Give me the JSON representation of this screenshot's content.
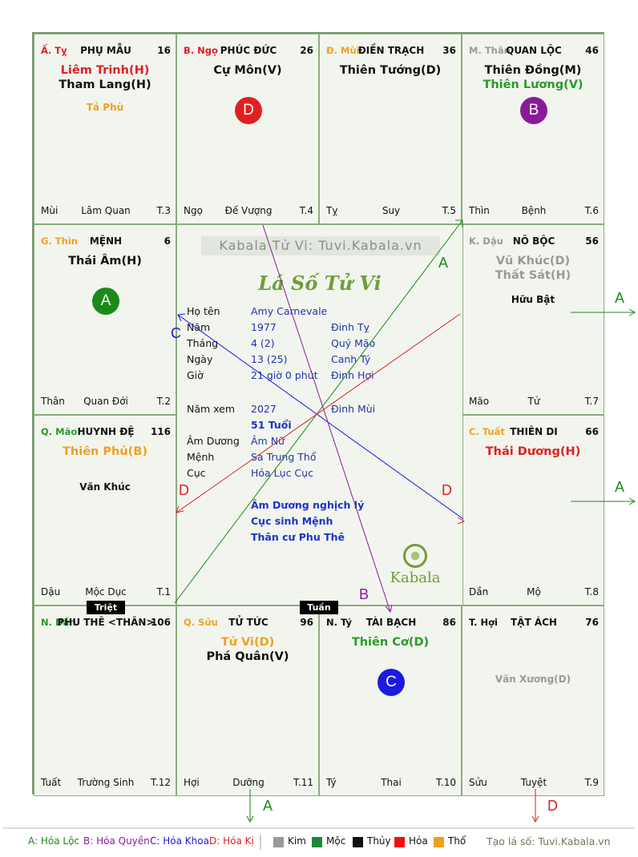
{
  "cells": {
    "ty": {
      "can": "Ấ. Tỵ",
      "can_color": "#e02020",
      "palace": "PHỤ MẪU",
      "num": "16",
      "main": [
        {
          "t": "Liêm Trinh(H)",
          "c": "#e02020"
        },
        {
          "t": "Tham Lang(H)",
          "c": "#111111"
        }
      ],
      "minor": [
        {
          "t": "Tả Phù",
          "c": "#f0a020"
        }
      ],
      "bot_l": "Mùi",
      "bot_c": "Lâm Quan",
      "bot_r": "T.3"
    },
    "ngo": {
      "can": "B. Ngọ",
      "can_color": "#e02020",
      "palace": "PHÚC ĐỨC",
      "num": "26",
      "main": [
        {
          "t": "Cự Môn(V)",
          "c": "#111111"
        }
      ],
      "minor": [],
      "badge": {
        "t": "D",
        "c": "#e02020"
      },
      "bot_l": "Ngọ",
      "bot_c": "Đế Vượng",
      "bot_r": "T.4"
    },
    "mui": {
      "can": "Đ. Mùi",
      "can_color": "#f0a020",
      "palace": "ĐIỀN TRẠCH",
      "num": "36",
      "main": [
        {
          "t": "Thiên Tướng(D)",
          "c": "#111111"
        }
      ],
      "minor": [],
      "bot_l": "Tỵ",
      "bot_c": "Suy",
      "bot_r": "T.5"
    },
    "than": {
      "can": "M. Thân",
      "can_color": "#999999",
      "palace": "QUAN LỘC",
      "num": "46",
      "main": [
        {
          "t": "Thiên Đồng(M)",
          "c": "#111111"
        },
        {
          "t": "Thiên Lương(V)",
          "c": "#2a9a2a"
        }
      ],
      "minor": [],
      "badge": {
        "t": "B",
        "c": "#8a1a9a"
      },
      "bot_l": "Thìn",
      "bot_c": "Bệnh",
      "bot_r": "T.6"
    },
    "thin": {
      "can": "G. Thìn",
      "can_color": "#f0a020",
      "palace": "MỆNH",
      "num": "6",
      "main": [
        {
          "t": "Thái Âm(H)",
          "c": "#111111"
        }
      ],
      "minor": [],
      "badge": {
        "t": "A",
        "c": "#1a8a1a"
      },
      "bot_l": "Thân",
      "bot_c": "Quan Đới",
      "bot_r": "T.2"
    },
    "dau": {
      "can": "K. Dậu",
      "can_color": "#999999",
      "palace": "NÔ BỘC",
      "num": "56",
      "main": [
        {
          "t": "Vũ Khúc(D)",
          "c": "#999999"
        },
        {
          "t": "Thất Sát(H)",
          "c": "#999999"
        }
      ],
      "minor": [
        {
          "t": "Hữu Bật",
          "c": "#111111"
        }
      ],
      "bot_l": "Mão",
      "bot_c": "Tử",
      "bot_r": "T.7"
    },
    "mao": {
      "can": "Q. Mão",
      "can_color": "#2a9a2a",
      "palace": "HUYNH ĐỆ",
      "num": "116",
      "main": [
        {
          "t": "Thiên Phủ(B)",
          "c": "#f0a020"
        }
      ],
      "minor": [
        {
          "t": "Văn Khúc",
          "c": "#111111"
        }
      ],
      "bot_l": "Dậu",
      "bot_c": "Mộc Dục",
      "bot_r": "T.1"
    },
    "tuat": {
      "can": "C. Tuất",
      "can_color": "#f0a020",
      "palace": "THIÊN DI",
      "num": "66",
      "main": [
        {
          "t": "Thái Dương(H)",
          "c": "#e02020"
        }
      ],
      "minor": [],
      "bot_l": "Dần",
      "bot_c": "Mộ",
      "bot_r": "T.8"
    },
    "dan": {
      "can": "N. Dần",
      "can_color": "#2a9a2a",
      "palace": "PHU THÊ <THÂN>",
      "num": "106",
      "main": [],
      "minor": [],
      "bot_l": "Tuất",
      "bot_c": "Trường Sinh",
      "bot_r": "T.12"
    },
    "suu": {
      "can": "Q. Sửu",
      "can_color": "#f0a020",
      "palace": "TỬ TỨC",
      "num": "96",
      "main": [
        {
          "t": "Tử Vi(D)",
          "c": "#f0a020"
        },
        {
          "t": "Phá Quân(V)",
          "c": "#111111"
        }
      ],
      "minor": [],
      "bot_l": "Hợi",
      "bot_c": "Dưỡng",
      "bot_r": "T.11"
    },
    "ti": {
      "can": "N. Tý",
      "can_color": "#111111",
      "palace": "TÀI BẠCH",
      "num": "86",
      "main": [
        {
          "t": "Thiên Cơ(D)",
          "c": "#2a9a2a"
        }
      ],
      "minor": [],
      "badge": {
        "t": "C",
        "c": "#1a1ae0"
      },
      "bot_l": "Tý",
      "bot_c": "Thai",
      "bot_r": "T.10"
    },
    "hoi": {
      "can": "T. Hợi",
      "can_color": "#111111",
      "palace": "TẬT ÁCH",
      "num": "76",
      "main": [],
      "minor": [
        {
          "t": "Văn Xương(D)",
          "c": "#999999"
        }
      ],
      "bot_l": "Sửu",
      "bot_c": "Tuyệt",
      "bot_r": "T.9"
    }
  },
  "center": {
    "watermark": "Kabala Tử Vi: Tuvi.Kabala.vn",
    "title": "Lá Số Tử Vi",
    "rows": [
      {
        "k": "Họ tên",
        "v": "Amy Carnevale",
        "w": ""
      },
      {
        "k": "Năm",
        "v": "1977",
        "w": "Đinh Tỵ"
      },
      {
        "k": "Tháng",
        "v": "4  (2)",
        "w": "Quý Mão"
      },
      {
        "k": "Ngày",
        "v": "13  (25)",
        "w": "Canh Tý"
      },
      {
        "k": "Giờ",
        "v": "21 giờ 0 phút",
        "w": "Đinh Hợi"
      }
    ],
    "year_label": "Năm xem",
    "year_val": "2027",
    "year_can": "Đinh Mùi",
    "age": "51 Tuổi",
    "rows2": [
      {
        "k": "Âm Dương",
        "v": "Âm Nữ"
      },
      {
        "k": "Mệnh",
        "v": "Sa Trung Thổ"
      },
      {
        "k": "Cục",
        "v": "Hỏa Lục Cục"
      }
    ],
    "notes": [
      "Âm Dương nghịch lý",
      "Cục sinh Mệnh",
      "Thân cư Phu Thê"
    ],
    "brand": "Kabala"
  },
  "tags": {
    "triet": "Triệt",
    "tuan": "Tuần"
  },
  "arrow_labels": {
    "a1": "A",
    "a2": "A",
    "a3": "A",
    "a4": "A",
    "b": "B",
    "c": "C",
    "d1": "D",
    "d2": "D",
    "d3": "D"
  },
  "legend": {
    "a": "A: Hóa Lộc",
    "b": "B: Hóa Quyền",
    "c": "C: Hóa Khoa",
    "d": "D: Hóa Kị",
    "elements": [
      {
        "t": "Kim",
        "c": "#999999"
      },
      {
        "t": "Mộc",
        "c": "#1a8a3a"
      },
      {
        "t": "Thủy",
        "c": "#111111"
      },
      {
        "t": "Hỏa",
        "c": "#ee1111"
      },
      {
        "t": "Thổ",
        "c": "#f0a020"
      }
    ],
    "site": "Tạo lá số: Tuvi.Kabala.vn"
  },
  "colors": {
    "loc": "#1a8a1a",
    "quyen": "#8a1a9a",
    "khoa": "#1a1ae0",
    "ki": "#e02020"
  }
}
